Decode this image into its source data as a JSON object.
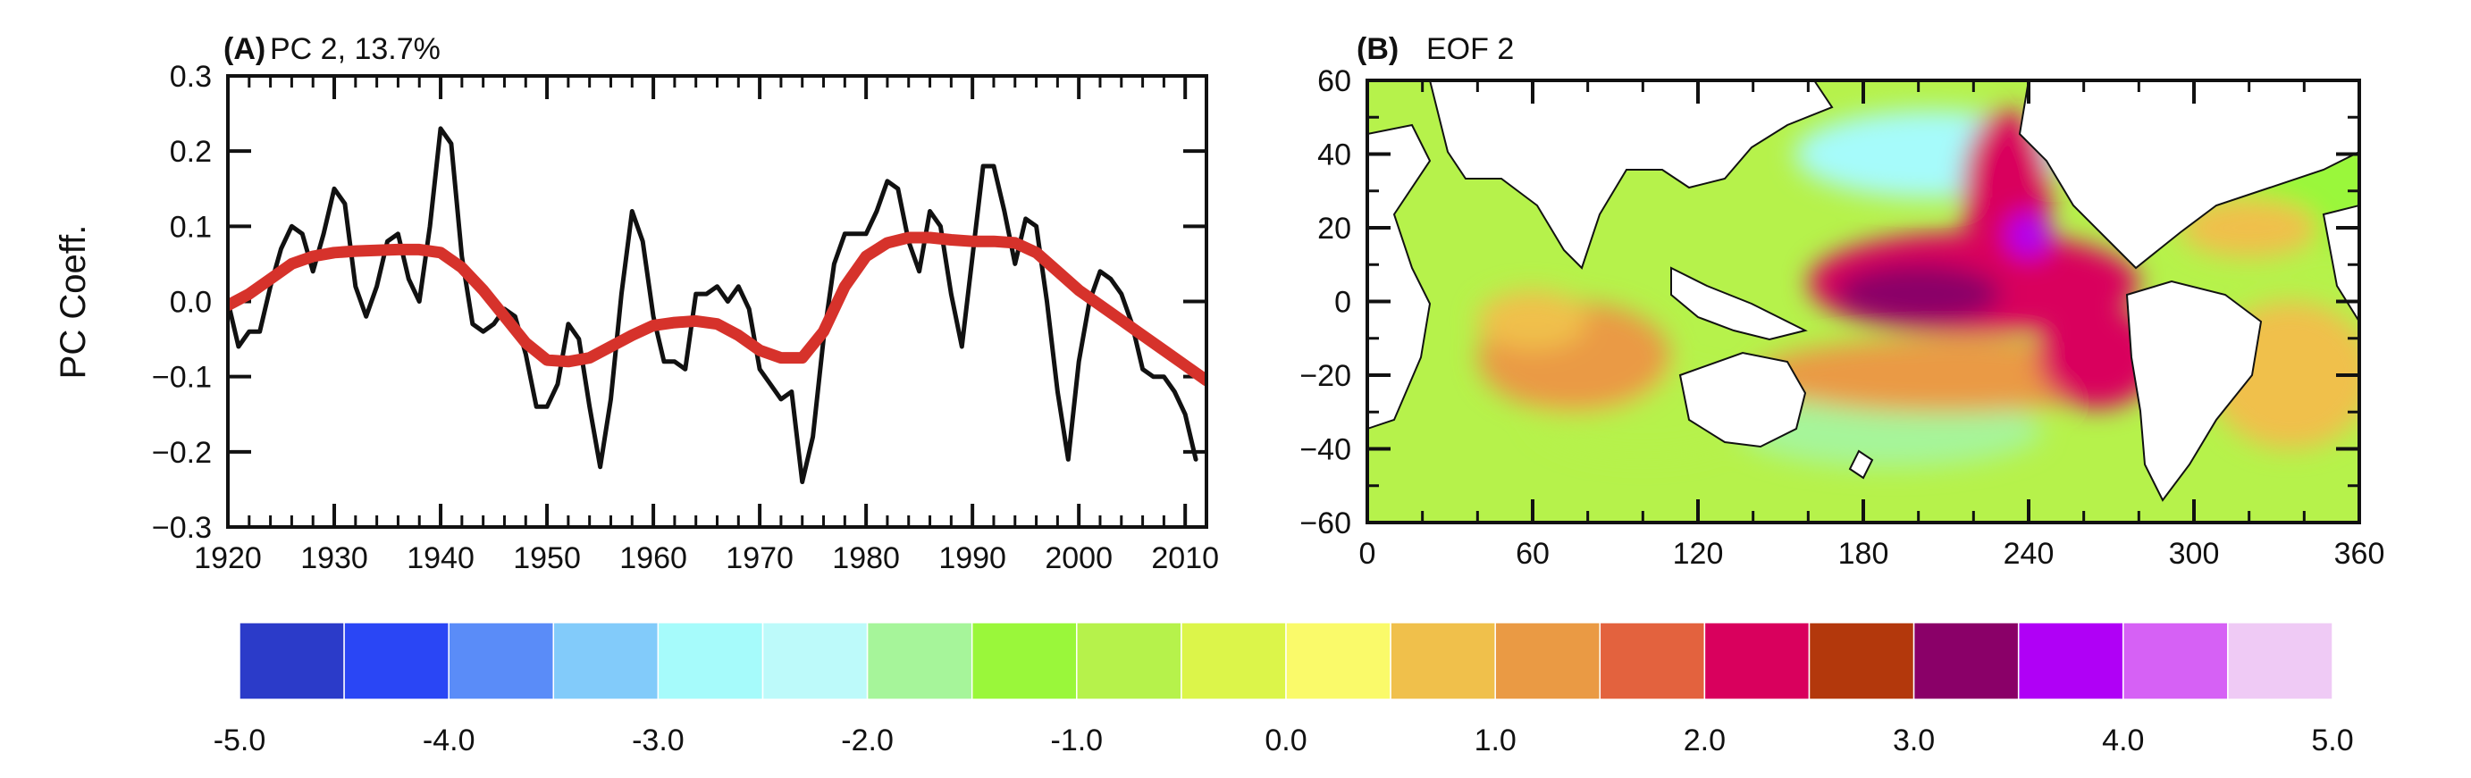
{
  "chart_data": [
    {
      "type": "line",
      "panel_tag": "(A)",
      "title": "PC 2, 13.7%",
      "xlabel": "",
      "ylabel": "PC Coeff.",
      "xlim": [
        1920,
        2012
      ],
      "ylim": [
        -0.3,
        0.3
      ],
      "x_ticks": [
        1920,
        1930,
        1940,
        1950,
        1960,
        1970,
        1980,
        1990,
        2000,
        2010
      ],
      "x_tick_labels": [
        "1920",
        "1930",
        "1940",
        "1950",
        "1960",
        "1970",
        "1980",
        "1990",
        "2000",
        "2010"
      ],
      "y_ticks": [
        -0.3,
        -0.2,
        -0.1,
        0.0,
        0.1,
        0.2,
        0.3
      ],
      "y_tick_labels": [
        "−0.3",
        "−0.2",
        "−0.1",
        "0.0",
        "0.1",
        "0.2",
        "0.3"
      ],
      "grid": false,
      "series": [
        {
          "color": "#111111",
          "x": [
            1920,
            1921,
            1922,
            1923,
            1924,
            1925,
            1926,
            1927,
            1928,
            1929,
            1930,
            1931,
            1932,
            1933,
            1934,
            1935,
            1936,
            1937,
            1938,
            1939,
            1940,
            1941,
            1942,
            1943,
            1944,
            1945,
            1946,
            1947,
            1948,
            1949,
            1950,
            1951,
            1952,
            1953,
            1954,
            1955,
            1956,
            1957,
            1958,
            1959,
            1960,
            1961,
            1962,
            1963,
            1964,
            1965,
            1966,
            1967,
            1968,
            1969,
            1970,
            1971,
            1972,
            1973,
            1974,
            1975,
            1976,
            1977,
            1978,
            1979,
            1980,
            1981,
            1982,
            1983,
            1984,
            1985,
            1986,
            1987,
            1988,
            1989,
            1990,
            1991,
            1992,
            1993,
            1994,
            1995,
            1996,
            1997,
            1998,
            1999,
            2000,
            2001,
            2002,
            2003,
            2004,
            2005,
            2006,
            2007,
            2008,
            2009,
            2010,
            2011
          ],
          "y": [
            0.0,
            -0.06,
            -0.04,
            -0.04,
            0.02,
            0.07,
            0.1,
            0.09,
            0.04,
            0.09,
            0.15,
            0.13,
            0.02,
            -0.02,
            0.02,
            0.08,
            0.09,
            0.03,
            0.0,
            0.1,
            0.23,
            0.21,
            0.06,
            -0.03,
            -0.04,
            -0.03,
            -0.01,
            -0.02,
            -0.07,
            -0.14,
            -0.14,
            -0.11,
            -0.03,
            -0.05,
            -0.14,
            -0.22,
            -0.13,
            0.01,
            0.12,
            0.08,
            -0.02,
            -0.08,
            -0.08,
            -0.09,
            0.01,
            0.01,
            0.02,
            0.0,
            0.02,
            -0.01,
            -0.09,
            -0.11,
            -0.13,
            -0.12,
            -0.24,
            -0.18,
            -0.05,
            0.05,
            0.09,
            0.09,
            0.09,
            0.12,
            0.16,
            0.15,
            0.08,
            0.04,
            0.12,
            0.1,
            0.01,
            -0.06,
            0.06,
            0.18,
            0.18,
            0.12,
            0.05,
            0.11,
            0.1,
            0.0,
            -0.12,
            -0.21,
            -0.08,
            0.0,
            0.04,
            0.03,
            0.01,
            -0.03,
            -0.09,
            -0.1,
            -0.1,
            -0.12,
            -0.15,
            -0.21
          ]
        },
        {
          "color": "#d6322b",
          "x": [
            1920,
            1922,
            1924,
            1926,
            1928,
            1930,
            1932,
            1934,
            1936,
            1938,
            1940,
            1942,
            1944,
            1946,
            1948,
            1950,
            1952,
            1954,
            1956,
            1958,
            1960,
            1962,
            1964,
            1966,
            1968,
            1970,
            1972,
            1974,
            1976,
            1978,
            1980,
            1982,
            1984,
            1986,
            1988,
            1990,
            1992,
            1994,
            1996,
            1998,
            2000,
            2002,
            2004,
            2006,
            2008,
            2010,
            2012
          ],
          "y": [
            -0.005,
            0.01,
            0.03,
            0.05,
            0.06,
            0.065,
            0.067,
            0.068,
            0.069,
            0.069,
            0.065,
            0.045,
            0.015,
            -0.02,
            -0.055,
            -0.078,
            -0.08,
            -0.075,
            -0.06,
            -0.045,
            -0.032,
            -0.028,
            -0.026,
            -0.03,
            -0.045,
            -0.065,
            -0.075,
            -0.075,
            -0.04,
            0.02,
            0.06,
            0.078,
            0.085,
            0.085,
            0.082,
            0.08,
            0.08,
            0.078,
            0.065,
            0.04,
            0.015,
            -0.005,
            -0.025,
            -0.045,
            -0.065,
            -0.085,
            -0.105
          ]
        }
      ]
    },
    {
      "type": "heatmap",
      "panel_tag": "(B)",
      "title": "EOF 2",
      "xlabel": "",
      "ylabel": "",
      "xlim": [
        0,
        360
      ],
      "ylim": [
        -60,
        60
      ],
      "x_ticks": [
        0,
        60,
        120,
        180,
        240,
        300,
        360
      ],
      "x_tick_labels": [
        "0",
        "60",
        "120",
        "180",
        "240",
        "300",
        "360"
      ],
      "y_ticks": [
        -60,
        -40,
        -20,
        0,
        20,
        40,
        60
      ],
      "y_tick_labels": [
        "−60",
        "−40",
        "−20",
        "0",
        "20",
        "40",
        "60"
      ],
      "grid": false,
      "land_color": "#ffffff",
      "pattern": [
        {
          "lon": 205,
          "lat": 40,
          "rx": 50,
          "ry": 12,
          "value": -2.6
        },
        {
          "lon": 190,
          "lat": -35,
          "rx": 55,
          "ry": 10,
          "value": -1.9
        },
        {
          "lon": 100,
          "lat": -30,
          "rx": 40,
          "ry": 12,
          "value": -1.0
        },
        {
          "lon": 350,
          "lat": 30,
          "rx": 30,
          "ry": 15,
          "value": -1.2
        },
        {
          "lon": 220,
          "lat": 5,
          "rx": 60,
          "ry": 14,
          "value": 2.4
        },
        {
          "lon": 232,
          "lat": 30,
          "rx": 16,
          "ry": 22,
          "value": 2.2
        },
        {
          "lon": 240,
          "lat": 18,
          "rx": 8,
          "ry": 6,
          "value": 3.7
        },
        {
          "lon": 200,
          "lat": 2,
          "rx": 30,
          "ry": 8,
          "value": 3.0
        },
        {
          "lon": 210,
          "lat": -20,
          "rx": 70,
          "ry": 10,
          "value": 1.3
        },
        {
          "lon": 265,
          "lat": -15,
          "rx": 22,
          "ry": 14,
          "value": 2.0
        },
        {
          "lon": 75,
          "lat": -15,
          "rx": 35,
          "ry": 15,
          "value": 1.0
        },
        {
          "lon": 60,
          "lat": -5,
          "rx": 20,
          "ry": 8,
          "value": 0.6
        },
        {
          "lon": 335,
          "lat": -20,
          "rx": 30,
          "ry": 20,
          "value": 0.9
        },
        {
          "lon": 320,
          "lat": 20,
          "rx": 25,
          "ry": 8,
          "value": 0.8
        }
      ],
      "colorbar": {
        "boundaries": [
          -5.0,
          -4.5,
          -4.0,
          -3.5,
          -3.0,
          -2.5,
          -2.0,
          -1.5,
          -1.0,
          -0.5,
          0.0,
          0.5,
          1.0,
          1.5,
          2.0,
          2.5,
          3.0,
          3.5,
          4.0,
          4.5,
          5.0
        ],
        "colors": [
          "#2b3bc9",
          "#2a46f5",
          "#5a8cf8",
          "#82cbfa",
          "#a6fbfb",
          "#bdfafa",
          "#a6f59a",
          "#9af73a",
          "#b6f24b",
          "#dcf54a",
          "#fafa6a",
          "#f0c04b",
          "#ea9a44",
          "#e3623e",
          "#d9005d",
          "#b3380c",
          "#8a0068",
          "#b000f6",
          "#d661f5",
          "#efcaf5"
        ],
        "tick_values": [
          -5.0,
          -4.0,
          -3.0,
          -2.0,
          -1.0,
          0.0,
          1.0,
          2.0,
          3.0,
          4.0,
          5.0
        ],
        "tick_labels": [
          "-5.0",
          "-4.0",
          "-3.0",
          "-2.0",
          "-1.0",
          "0.0",
          "1.0",
          "2.0",
          "3.0",
          "4.0",
          "5.0"
        ]
      }
    }
  ]
}
